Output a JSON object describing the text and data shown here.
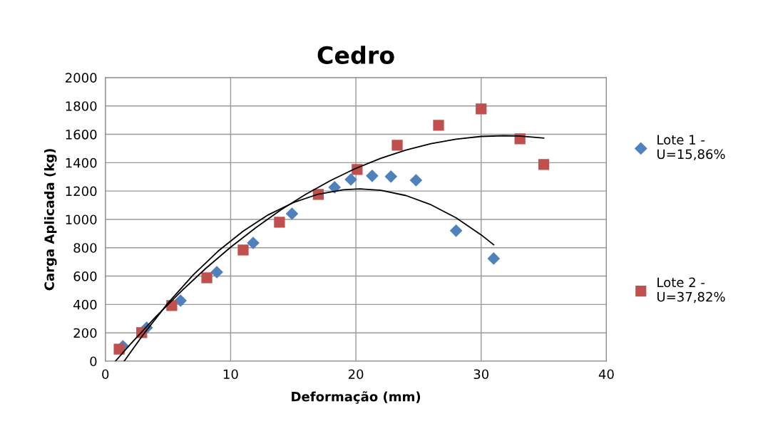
{
  "chart_data": {
    "type": "scatter",
    "title": "Cedro",
    "xlabel": "Deformação (mm)",
    "ylabel": "Carga Aplicada (kg)",
    "xlim": [
      0,
      40
    ],
    "xticks": [
      0,
      10,
      20,
      30,
      40
    ],
    "ylim": [
      0,
      2000
    ],
    "yticks": [
      0,
      200,
      400,
      600,
      800,
      1000,
      1200,
      1400,
      1600,
      1800,
      2000
    ],
    "grid": true,
    "legend": "right",
    "series": [
      {
        "name": "Lote 1 - U=15,86%",
        "marker": "diamond",
        "color": "#4f81bd",
        "x": [
          1.4,
          3.3,
          6.0,
          8.9,
          11.8,
          14.9,
          18.3,
          19.6,
          21.3,
          22.8,
          24.8,
          28.0,
          31.0
        ],
        "values": [
          105,
          236,
          427,
          628,
          834,
          1040,
          1226,
          1281,
          1307,
          1302,
          1276,
          920,
          724
        ]
      },
      {
        "name": "Lote 2 - U=37,82%",
        "marker": "square",
        "color": "#c0504d",
        "x": [
          1.1,
          2.9,
          5.3,
          8.1,
          11.0,
          13.9,
          17.0,
          20.1,
          23.3,
          26.6,
          30.0,
          33.1,
          35.0
        ],
        "values": [
          85,
          201,
          392,
          588,
          784,
          980,
          1176,
          1352,
          1523,
          1663,
          1779,
          1568,
          1387
        ]
      },
      {
        "type": "line",
        "marker": "none",
        "color": "#000000",
        "x": [
          1.5,
          3,
          5,
          7,
          9,
          11,
          13,
          15,
          17,
          19,
          20.3,
          22,
          24,
          26,
          28,
          30,
          31
        ],
        "values": [
          0,
          185,
          410,
          607,
          776,
          917,
          1032,
          1118,
          1178,
          1209,
          1215,
          1205,
          1168,
          1103,
          1011,
          891,
          821
        ]
      },
      {
        "type": "line",
        "marker": "none",
        "color": "#000000",
        "x": [
          0.8,
          2,
          4,
          6,
          8,
          10,
          12,
          14,
          16,
          18,
          20,
          22,
          24,
          26,
          28,
          30,
          31.8,
          33,
          35
        ],
        "values": [
          0,
          120,
          311,
          488,
          653,
          804,
          941,
          1066,
          1177,
          1275,
          1360,
          1431,
          1489,
          1534,
          1566,
          1585,
          1590,
          1588,
          1573
        ]
      }
    ]
  }
}
